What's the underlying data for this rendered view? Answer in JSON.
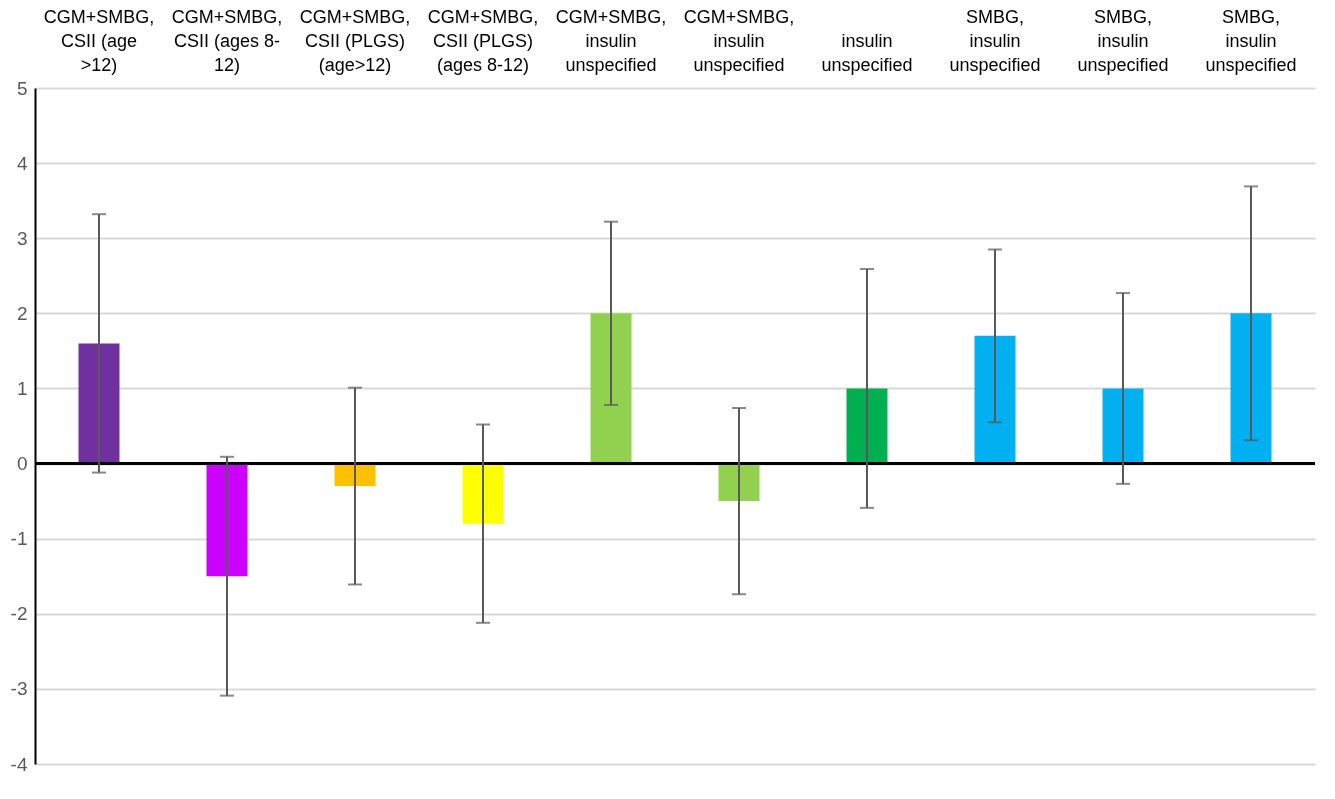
{
  "chart_data": {
    "type": "bar",
    "categories": [
      "CGM+SMBG, CSII (age >12)",
      "CGM+SMBG, CSII (ages 8-12)",
      "CGM+SMBG, CSII (PLGS) (age>12)",
      "CGM+SMBG, CSII (PLGS) (ages 8-12)",
      "CGM+SMBG, insulin unspecified",
      "CGM+SMBG, insulin unspecified",
      "insulin unspecified",
      "SMBG, insulin unspecified",
      "SMBG, insulin unspecified",
      "SMBG, insulin unspecified"
    ],
    "values": [
      1.6,
      -1.5,
      -0.3,
      -0.8,
      2.0,
      -0.5,
      1.0,
      1.7,
      1.0,
      2.0
    ],
    "errors": [
      1.72,
      1.59,
      1.31,
      1.32,
      1.22,
      1.24,
      1.59,
      1.15,
      1.27,
      1.69
    ],
    "colors": [
      "#7030a0",
      "#cc00ff",
      "#ffc000",
      "#ffff00",
      "#92d050",
      "#92d050",
      "#00b050",
      "#00b0f0",
      "#00b0f0",
      "#00b0f0"
    ],
    "ylim": [
      -4,
      5
    ],
    "yticks": [
      -4,
      -3,
      -2,
      -1,
      0,
      1,
      2,
      3,
      4,
      5
    ],
    "grid": "y"
  }
}
